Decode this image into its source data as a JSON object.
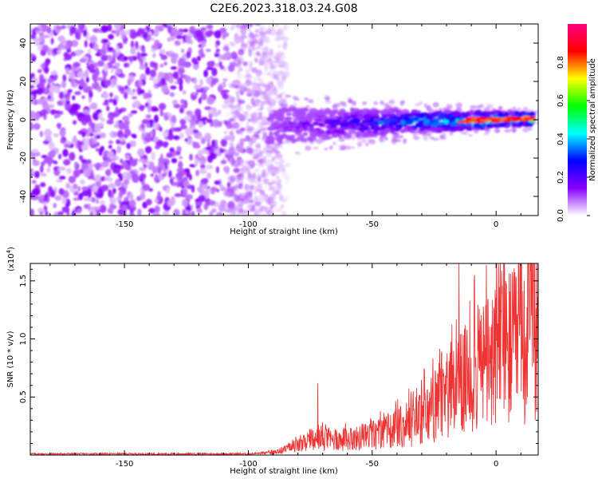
{
  "figure_title": "C2E6.2023.318.03.24.G08",
  "chart_data": [
    {
      "type": "heatmap",
      "id": "spectrogram",
      "xlabel": "Height of straight line (km)",
      "ylabel": "Frequency (Hz)",
      "xlim": [
        -188,
        17
      ],
      "ylim": [
        -50,
        50
      ],
      "x_ticks": [
        -150,
        -100,
        -50,
        0
      ],
      "x_tick_labels": [
        "-150",
        "-100",
        "-50",
        "0"
      ],
      "y_ticks": [
        -40,
        -20,
        0,
        20,
        40
      ],
      "y_tick_labels": [
        "-40",
        "-20",
        "0",
        "20",
        "40"
      ],
      "signal_band_start_km": -92,
      "signal_band_end_km": 15,
      "signal_center_freq_hz": 0,
      "noise_region_end_km": -88,
      "colorbar": {
        "label": "Normalized spectral amplitude",
        "range": [
          0.0,
          1.0
        ],
        "ticks": [
          0.0,
          0.2,
          0.4,
          0.6,
          0.8
        ],
        "tick_labels": [
          "0.0",
          "0.2",
          "0.4",
          "0.6",
          "0.8"
        ],
        "colors": [
          "#ffffff",
          "#8800ff",
          "#0000ff",
          "#00ffff",
          "#00ff00",
          "#ffff00",
          "#ff0000",
          "#ff0080"
        ]
      }
    },
    {
      "type": "line",
      "id": "snr",
      "xlabel": "Height of straight line (km)",
      "ylabel": "SNR (10 * v/v)",
      "scale_label": "(x10",
      "scale_exp": "4",
      "scale_close": ")",
      "xlim": [
        -188,
        17
      ],
      "ylim": [
        0.0,
        1.65
      ],
      "x_ticks": [
        -150,
        -100,
        -50,
        0
      ],
      "x_tick_labels": [
        "-150",
        "-100",
        "-50",
        "0"
      ],
      "y_ticks": [
        0.5,
        1.0,
        1.5
      ],
      "y_tick_labels": [
        "0.5",
        "1.0",
        "1.5"
      ],
      "line_color": "#ee3333",
      "trend_x": [
        -188,
        -100,
        -90,
        -80,
        -70,
        -60,
        -50,
        -40,
        -30,
        -20,
        -10,
        0,
        10,
        17
      ],
      "trend_y": [
        0.01,
        0.01,
        0.02,
        0.08,
        0.13,
        0.13,
        0.16,
        0.22,
        0.32,
        0.46,
        0.7,
        0.85,
        0.95,
        1.2
      ],
      "peaks": [
        {
          "x": -72,
          "y": 0.62
        },
        {
          "x": -29,
          "y": 0.74
        },
        {
          "x": -22,
          "y": 0.89
        },
        {
          "x": -15,
          "y": 1.65
        },
        {
          "x": -2,
          "y": 1.1
        },
        {
          "x": 10,
          "y": 1.65
        },
        {
          "x": 11,
          "y": 0.48
        },
        {
          "x": 17,
          "y": 1.47
        }
      ]
    }
  ]
}
